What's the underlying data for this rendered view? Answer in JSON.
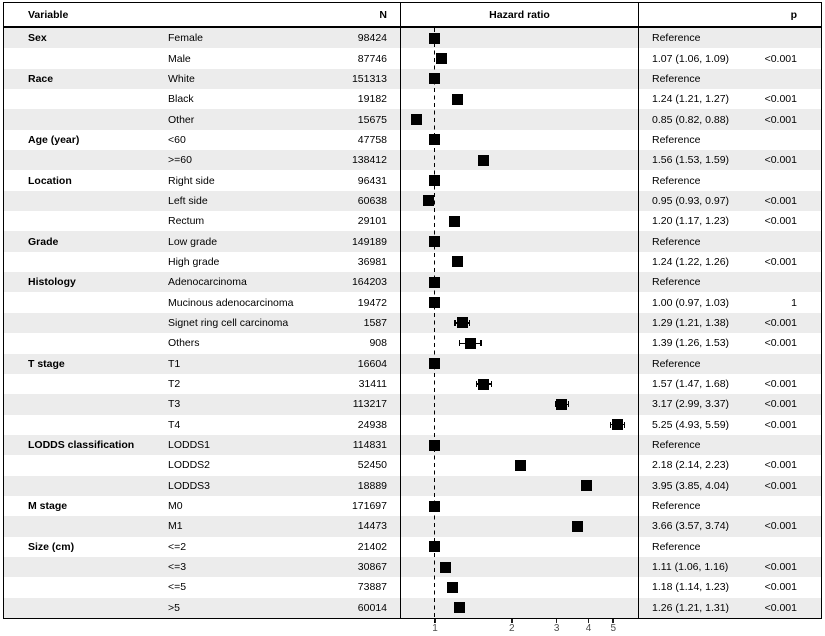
{
  "figure": {
    "columns": {
      "variable": "Variable",
      "n": "N",
      "hazard_ratio": "Hazard ratio",
      "p": "p"
    }
  },
  "chart_data": {
    "type": "scatter",
    "variant": "forest-plot",
    "title": "Hazard ratio",
    "x_scale": "log10",
    "x_ticks": [
      "1",
      "2",
      "3",
      "4",
      "5"
    ],
    "x_tick_values": [
      1,
      2,
      3,
      4,
      5
    ],
    "x_range": [
      0.74,
      5.9
    ],
    "reference_line_x": 1,
    "grid": false,
    "colors": {
      "marker": "#000000",
      "stripe": "#ececec",
      "border": "#000000",
      "axis_label": "#4d4d4d"
    },
    "rows": [
      {
        "variable": "Sex",
        "label": "Female",
        "n": "98424",
        "hr": 1,
        "lo": 1,
        "hi": 1,
        "estimate": "Reference",
        "p": ""
      },
      {
        "variable": "",
        "label": "Male",
        "n": "87746",
        "hr": 1.07,
        "lo": 1.06,
        "hi": 1.09,
        "estimate": "1.07 (1.06, 1.09)",
        "p": "<0.001"
      },
      {
        "variable": "Race",
        "label": "White",
        "n": "151313",
        "hr": 1,
        "lo": 1,
        "hi": 1,
        "estimate": "Reference",
        "p": ""
      },
      {
        "variable": "",
        "label": "Black",
        "n": "19182",
        "hr": 1.24,
        "lo": 1.21,
        "hi": 1.27,
        "estimate": "1.24 (1.21, 1.27)",
        "p": "<0.001"
      },
      {
        "variable": "",
        "label": "Other",
        "n": "15675",
        "hr": 0.85,
        "lo": 0.82,
        "hi": 0.88,
        "estimate": "0.85 (0.82, 0.88)",
        "p": "<0.001"
      },
      {
        "variable": "Age (year)",
        "label": "<60",
        "n": "47758",
        "hr": 1,
        "lo": 1,
        "hi": 1,
        "estimate": "Reference",
        "p": ""
      },
      {
        "variable": "",
        "label": ">=60",
        "n": "138412",
        "hr": 1.56,
        "lo": 1.53,
        "hi": 1.59,
        "estimate": "1.56 (1.53, 1.59)",
        "p": "<0.001"
      },
      {
        "variable": "Location",
        "label": "Right side",
        "n": "96431",
        "hr": 1,
        "lo": 1,
        "hi": 1,
        "estimate": "Reference",
        "p": ""
      },
      {
        "variable": "",
        "label": "Left side",
        "n": "60638",
        "hr": 0.95,
        "lo": 0.93,
        "hi": 0.97,
        "estimate": "0.95 (0.93, 0.97)",
        "p": "<0.001"
      },
      {
        "variable": "",
        "label": "Rectum",
        "n": "29101",
        "hr": 1.2,
        "lo": 1.17,
        "hi": 1.23,
        "estimate": "1.20 (1.17, 1.23)",
        "p": "<0.001"
      },
      {
        "variable": "Grade",
        "label": "Low grade",
        "n": "149189",
        "hr": 1,
        "lo": 1,
        "hi": 1,
        "estimate": "Reference",
        "p": ""
      },
      {
        "variable": "",
        "label": "High grade",
        "n": "36981",
        "hr": 1.24,
        "lo": 1.22,
        "hi": 1.26,
        "estimate": "1.24 (1.22, 1.26)",
        "p": "<0.001"
      },
      {
        "variable": "Histology",
        "label": "Adenocarcinoma",
        "n": "164203",
        "hr": 1,
        "lo": 1,
        "hi": 1,
        "estimate": "Reference",
        "p": ""
      },
      {
        "variable": "",
        "label": "Mucinous adenocarcinoma",
        "n": "19472",
        "hr": 1.0,
        "lo": 0.97,
        "hi": 1.03,
        "estimate": "1.00 (0.97, 1.03)",
        "p": "1"
      },
      {
        "variable": "",
        "label": "Signet ring cell carcinoma",
        "n": "1587",
        "hr": 1.29,
        "lo": 1.21,
        "hi": 1.38,
        "estimate": "1.29 (1.21, 1.38)",
        "p": "<0.001"
      },
      {
        "variable": "",
        "label": "Others",
        "n": "908",
        "hr": 1.39,
        "lo": 1.26,
        "hi": 1.53,
        "estimate": "1.39 (1.26, 1.53)",
        "p": "<0.001"
      },
      {
        "variable": "T stage",
        "label": "T1",
        "n": "16604",
        "hr": 1,
        "lo": 1,
        "hi": 1,
        "estimate": "Reference",
        "p": ""
      },
      {
        "variable": "",
        "label": "T2",
        "n": "31411",
        "hr": 1.57,
        "lo": 1.47,
        "hi": 1.68,
        "estimate": "1.57 (1.47, 1.68)",
        "p": "<0.001"
      },
      {
        "variable": "",
        "label": "T3",
        "n": "113217",
        "hr": 3.17,
        "lo": 2.99,
        "hi": 3.37,
        "estimate": "3.17 (2.99, 3.37)",
        "p": "<0.001"
      },
      {
        "variable": "",
        "label": "T4",
        "n": "24938",
        "hr": 5.25,
        "lo": 4.93,
        "hi": 5.59,
        "estimate": "5.25 (4.93, 5.59)",
        "p": "<0.001"
      },
      {
        "variable": "LODDS classification",
        "label": "LODDS1",
        "n": "114831",
        "hr": 1,
        "lo": 1,
        "hi": 1,
        "estimate": "Reference",
        "p": ""
      },
      {
        "variable": "",
        "label": "LODDS2",
        "n": "52450",
        "hr": 2.18,
        "lo": 2.14,
        "hi": 2.23,
        "estimate": "2.18 (2.14, 2.23)",
        "p": "<0.001"
      },
      {
        "variable": "",
        "label": "LODDS3",
        "n": "18889",
        "hr": 3.95,
        "lo": 3.85,
        "hi": 4.04,
        "estimate": "3.95 (3.85, 4.04)",
        "p": "<0.001"
      },
      {
        "variable": "M stage",
        "label": "M0",
        "n": "171697",
        "hr": 1,
        "lo": 1,
        "hi": 1,
        "estimate": "Reference",
        "p": ""
      },
      {
        "variable": "",
        "label": "M1",
        "n": "14473",
        "hr": 3.66,
        "lo": 3.57,
        "hi": 3.74,
        "estimate": "3.66 (3.57, 3.74)",
        "p": "<0.001"
      },
      {
        "variable": "Size (cm)",
        "label": "<=2",
        "n": "21402",
        "hr": 1,
        "lo": 1,
        "hi": 1,
        "estimate": "Reference",
        "p": ""
      },
      {
        "variable": "",
        "label": "<=3",
        "n": "30867",
        "hr": 1.11,
        "lo": 1.06,
        "hi": 1.16,
        "estimate": "1.11 (1.06, 1.16)",
        "p": "<0.001"
      },
      {
        "variable": "",
        "label": "<=5",
        "n": "73887",
        "hr": 1.18,
        "lo": 1.14,
        "hi": 1.23,
        "estimate": "1.18 (1.14, 1.23)",
        "p": "<0.001"
      },
      {
        "variable": "",
        "label": ">5",
        "n": "60014",
        "hr": 1.26,
        "lo": 1.21,
        "hi": 1.31,
        "estimate": "1.26 (1.21, 1.31)",
        "p": "<0.001"
      }
    ]
  }
}
